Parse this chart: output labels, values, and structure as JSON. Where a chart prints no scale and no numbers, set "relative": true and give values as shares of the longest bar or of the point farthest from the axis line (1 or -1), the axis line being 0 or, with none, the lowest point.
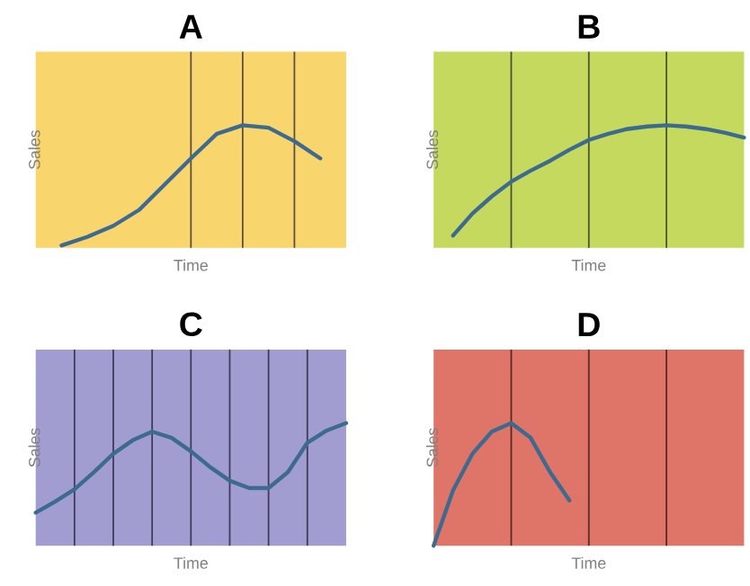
{
  "chart_data": [
    {
      "type": "line",
      "title": "A",
      "xlabel": "Time",
      "ylabel": "Sales",
      "relative": true,
      "grid": "x",
      "categories": [
        null,
        null,
        null,
        null,
        null,
        null,
        null,
        null,
        null,
        null,
        null,
        null,
        null
      ],
      "series": [
        {
          "color": "#3d6a8f",
          "values": [
            null,
            0.02,
            0.09,
            0.18,
            0.31,
            0.52,
            0.73,
            0.93,
            1,
            0.98,
            0.87,
            0.73,
            null
          ]
        }
      ]
    },
    {
      "type": "line",
      "title": "B",
      "xlabel": "Time",
      "ylabel": "Sales",
      "relative": true,
      "grid": "x",
      "categories": [
        null,
        null,
        null,
        null,
        null,
        null,
        null,
        null,
        null,
        null,
        null,
        null,
        null,
        null,
        null,
        null,
        null
      ],
      "series": [
        {
          "color": "#3d6a8f",
          "values": [
            null,
            0.1,
            0.28,
            0.42,
            0.54,
            0.63,
            0.71,
            0.8,
            0.88,
            0.93,
            0.97,
            0.99,
            1,
            0.99,
            0.97,
            0.94,
            0.9
          ]
        }
      ]
    },
    {
      "type": "line",
      "title": "C",
      "xlabel": "Time",
      "ylabel": "Sales",
      "relative": true,
      "grid": "x",
      "categories": [
        null,
        null,
        null,
        null,
        null,
        null,
        null,
        null,
        null,
        null,
        null,
        null,
        null,
        null,
        null,
        null,
        null
      ],
      "series": [
        {
          "color": "#3d6a8f",
          "values": [
            0.27,
            0.36,
            0.46,
            0.6,
            0.75,
            0.86,
            0.93,
            0.88,
            0.77,
            0.64,
            0.53,
            0.47,
            0.47,
            0.6,
            0.84,
            0.94,
            1
          ]
        }
      ]
    },
    {
      "type": "line",
      "title": "D",
      "xlabel": "Time",
      "ylabel": "Sales",
      "relative": true,
      "grid": "x",
      "categories": [
        null,
        null,
        null,
        null,
        null,
        null,
        null,
        null,
        null,
        null,
        null,
        null,
        null,
        null,
        null,
        null,
        null
      ],
      "series": [
        {
          "color": "#3d6a8f",
          "values": [
            0,
            0.45,
            0.75,
            0.93,
            1,
            0.88,
            0.6,
            0.37,
            null,
            null,
            null,
            null,
            null,
            null,
            null,
            null,
            null
          ]
        }
      ]
    }
  ]
}
